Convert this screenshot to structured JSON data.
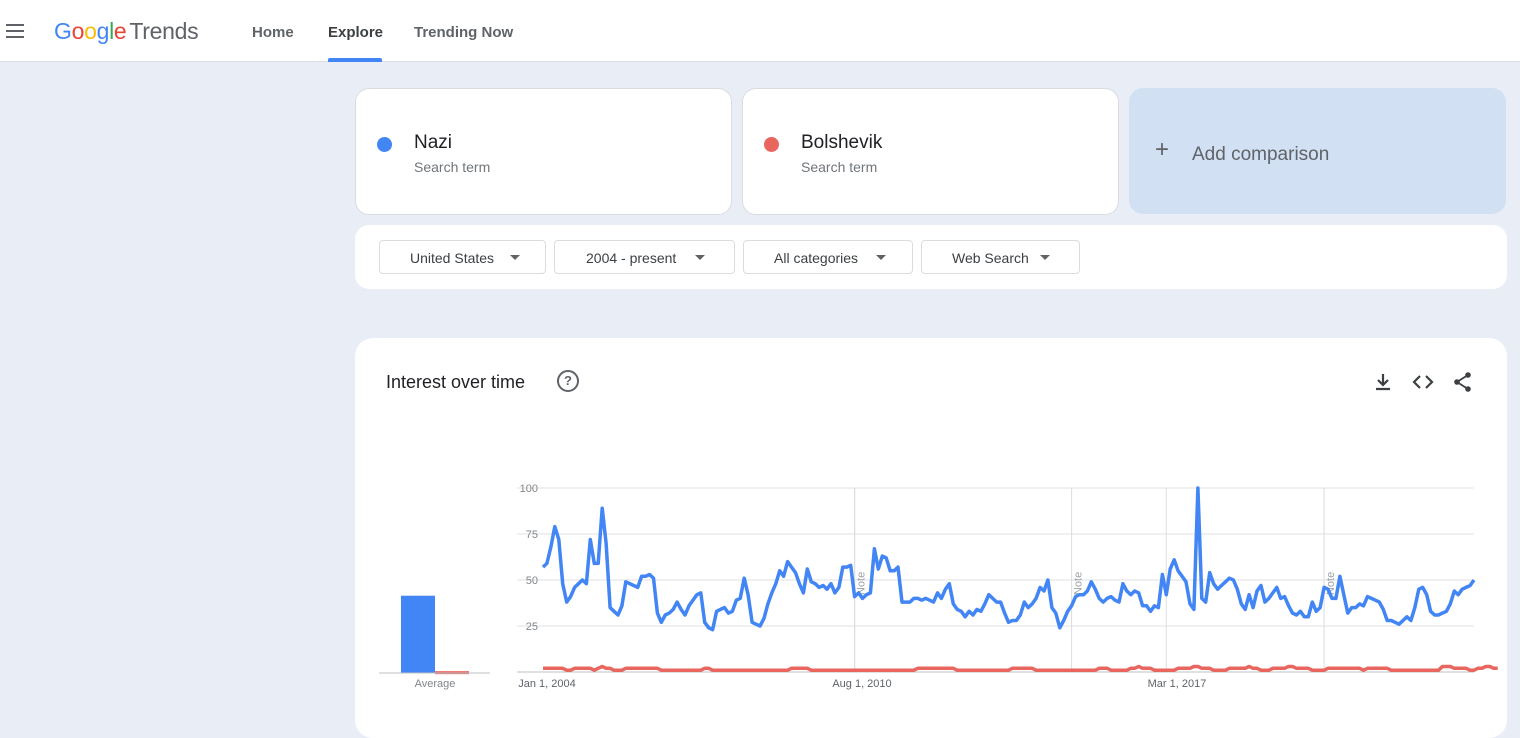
{
  "app": {
    "logo_google": "Google",
    "logo_trends": "Trends",
    "nav": [
      {
        "label": "Home",
        "active": false
      },
      {
        "label": "Explore",
        "active": true
      },
      {
        "label": "Trending Now",
        "active": false
      }
    ]
  },
  "terms": [
    {
      "name": "Nazi",
      "sub": "Search term",
      "color": "#4285f4"
    },
    {
      "name": "Bolshevik",
      "sub": "Search term",
      "color": "#e8665e"
    }
  ],
  "add_comparison": {
    "plus": "+",
    "label": "Add comparison"
  },
  "filters": [
    {
      "label": "United States"
    },
    {
      "label": "2004 - present"
    },
    {
      "label": "All categories"
    },
    {
      "label": "Web Search"
    }
  ],
  "interest": {
    "title": "Interest over time",
    "help": "?",
    "icons": [
      "download-icon",
      "embed-icon",
      "share-icon"
    ]
  },
  "chart_data": {
    "type": "line",
    "x_ticks": [
      "Jan 1, 2004",
      "Aug 1, 2010",
      "Mar 1, 2017"
    ],
    "y_ticks": [
      25,
      50,
      75,
      100
    ],
    "ylim": [
      0,
      100
    ],
    "notes": [
      "Note",
      "Note",
      "Note"
    ],
    "average_label": "Average",
    "averages": [
      {
        "name": "Nazi",
        "value": 42
      },
      {
        "name": "Bolshevik",
        "value": 1
      }
    ],
    "series": [
      {
        "name": "Nazi",
        "color": "#4285f4",
        "values": [
          57,
          59,
          68,
          79,
          72,
          48,
          38,
          41,
          46,
          48,
          50,
          48,
          72,
          59,
          59,
          89,
          70,
          35,
          33,
          31,
          36,
          49,
          48,
          47,
          46,
          52,
          52,
          53,
          51,
          32,
          27,
          31,
          32,
          34,
          38,
          34,
          31,
          36,
          39,
          42,
          43,
          27,
          24,
          23,
          33,
          34,
          35,
          32,
          33,
          39,
          40,
          51,
          42,
          27,
          26,
          25,
          29,
          37,
          43,
          48,
          55,
          52,
          60,
          57,
          54,
          48,
          43,
          56,
          49,
          48,
          46,
          47,
          45,
          48,
          43,
          46,
          57,
          57,
          58,
          41,
          43,
          40,
          42,
          43,
          67,
          56,
          63,
          62,
          55,
          55,
          57,
          38,
          38,
          38,
          40,
          40,
          39,
          40,
          39,
          38,
          43,
          40,
          45,
          48,
          37,
          34,
          33,
          30,
          33,
          31,
          34,
          33,
          37,
          42,
          40,
          38,
          38,
          32,
          27,
          28,
          28,
          31,
          38,
          35,
          37,
          40,
          46,
          44,
          50,
          35,
          32,
          24,
          28,
          33,
          36,
          41,
          42,
          42,
          44,
          49,
          45,
          40,
          38,
          40,
          41,
          39,
          38,
          48,
          44,
          42,
          44,
          43,
          36,
          36,
          33,
          36,
          35,
          53,
          42,
          56,
          61,
          55,
          52,
          49,
          37,
          34,
          100,
          40,
          38,
          54,
          48,
          45,
          47,
          49,
          51,
          50,
          45,
          37,
          34,
          42,
          35,
          44,
          47,
          38,
          40,
          43,
          46,
          40,
          41,
          36,
          32,
          31,
          33,
          30,
          30,
          38,
          33,
          35,
          46,
          45,
          40,
          40,
          52,
          42,
          32,
          35,
          35,
          37,
          36,
          41,
          40,
          39,
          38,
          34,
          28,
          28,
          27,
          26,
          28,
          30,
          28,
          35,
          45,
          46,
          42,
          33,
          31,
          31,
          32,
          33,
          37,
          44,
          42,
          45,
          46,
          47,
          50
        ]
      },
      {
        "name": "Bolshevik",
        "color": "#e8665e",
        "values": [
          2,
          2,
          2,
          2,
          2,
          2,
          1,
          1,
          2,
          2,
          2,
          2,
          2,
          1,
          2,
          3,
          2,
          2,
          1,
          1,
          1,
          2,
          2,
          2,
          2,
          2,
          2,
          2,
          2,
          2,
          1,
          1,
          1,
          1,
          1,
          1,
          1,
          1,
          1,
          1,
          1,
          2,
          2,
          1,
          1,
          1,
          1,
          1,
          1,
          1,
          1,
          1,
          1,
          1,
          1,
          1,
          1,
          1,
          1,
          1,
          1,
          1,
          1,
          2,
          2,
          2,
          2,
          2,
          1,
          1,
          1,
          1,
          1,
          1,
          1,
          1,
          1,
          1,
          1,
          1,
          1,
          1,
          1,
          1,
          1,
          1,
          1,
          1,
          1,
          1,
          1,
          1,
          1,
          1,
          1,
          2,
          2,
          2,
          2,
          2,
          2,
          2,
          2,
          2,
          2,
          1,
          1,
          1,
          1,
          1,
          1,
          1,
          1,
          1,
          1,
          1,
          1,
          1,
          1,
          2,
          2,
          2,
          2,
          2,
          2,
          1,
          1,
          1,
          1,
          1,
          1,
          1,
          1,
          1,
          1,
          1,
          1,
          1,
          1,
          1,
          1,
          2,
          2,
          2,
          1,
          1,
          1,
          1,
          1,
          2,
          2,
          3,
          2,
          2,
          2,
          1,
          1,
          1,
          1,
          1,
          1,
          2,
          2,
          2,
          2,
          3,
          3,
          2,
          2,
          2,
          1,
          1,
          1,
          1,
          2,
          2,
          2,
          2,
          2,
          3,
          2,
          2,
          1,
          1,
          1,
          2,
          2,
          2,
          2,
          3,
          3,
          2,
          2,
          2,
          2,
          1,
          1,
          1,
          1,
          2,
          2,
          2,
          2,
          2,
          2,
          2,
          2,
          2,
          1,
          2,
          2,
          2,
          2,
          2,
          2,
          1,
          1,
          1,
          1,
          1,
          1,
          1,
          1,
          1,
          1,
          1,
          1,
          1,
          3,
          3,
          3,
          2,
          2,
          2,
          2,
          1,
          1,
          2,
          2,
          3,
          3,
          2,
          2
        ]
      }
    ]
  }
}
